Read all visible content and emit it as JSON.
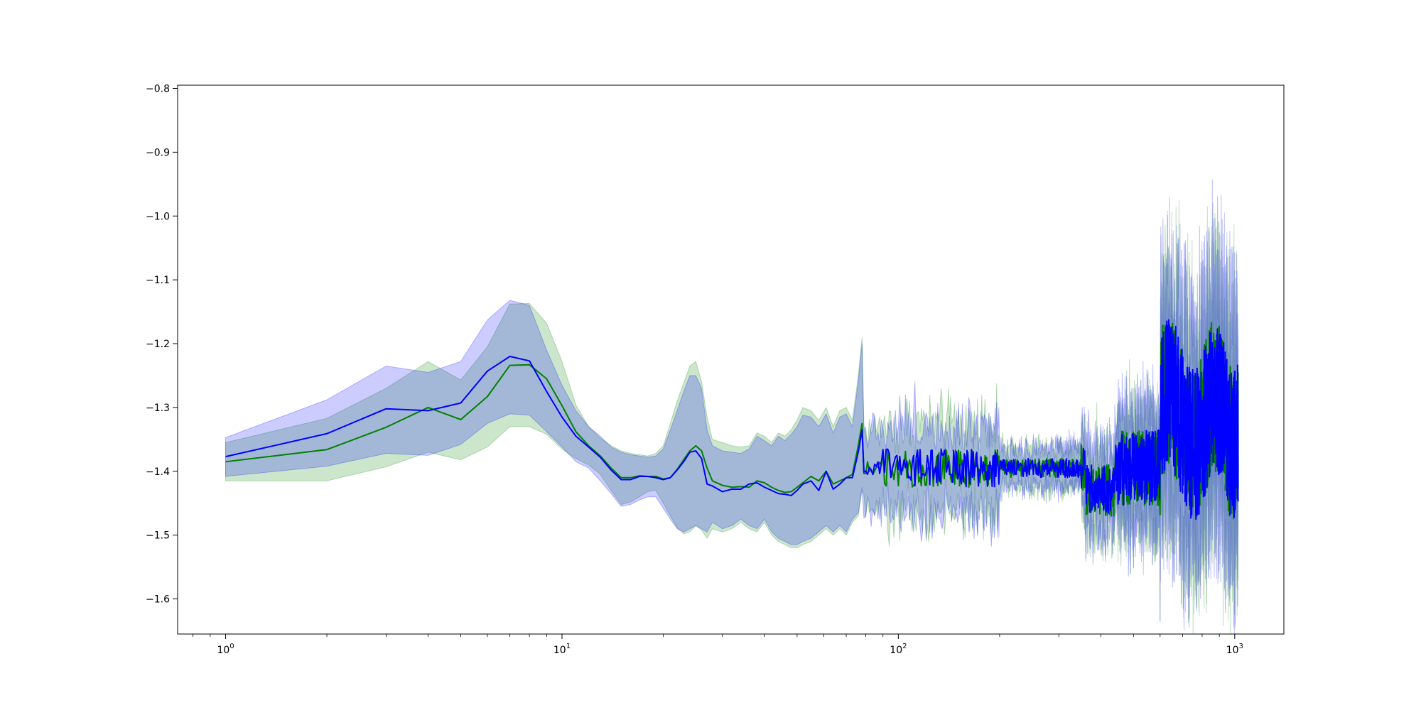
{
  "chart_data": {
    "type": "line",
    "title": "",
    "xlabel": "",
    "ylabel": "",
    "xscale": "log",
    "xlim": [
      0.72,
      1400
    ],
    "ylim": [
      -1.655,
      -0.795
    ],
    "grid": false,
    "legend": "none",
    "x_ticks": [
      {
        "value": 1,
        "base": "10",
        "exp": "0"
      },
      {
        "value": 10,
        "base": "10",
        "exp": "1"
      },
      {
        "value": 100,
        "base": "10",
        "exp": "2"
      },
      {
        "value": 1000,
        "base": "10",
        "exp": "3"
      }
    ],
    "y_ticks": [
      {
        "value": -0.8,
        "label": "−0.8"
      },
      {
        "value": -0.9,
        "label": "−0.9"
      },
      {
        "value": -1.0,
        "label": "−1.0"
      },
      {
        "value": -1.1,
        "label": "−1.1"
      },
      {
        "value": -1.2,
        "label": "−1.2"
      },
      {
        "value": -1.3,
        "label": "−1.3"
      },
      {
        "value": -1.4,
        "label": "−1.4"
      },
      {
        "value": -1.5,
        "label": "−1.5"
      },
      {
        "value": -1.6,
        "label": "−1.6"
      }
    ],
    "series": [
      {
        "color": "#008000",
        "band_color": "#008000",
        "band_opacity": 0.2,
        "x": [
          1,
          2,
          3,
          4,
          5,
          6,
          7,
          8,
          9,
          10,
          11,
          12,
          13,
          14,
          15,
          16,
          17,
          18,
          19,
          20,
          21,
          22,
          23,
          24,
          25,
          26,
          27,
          28,
          30,
          32,
          34,
          36,
          38,
          40,
          42,
          44,
          46,
          48,
          50,
          52,
          55,
          58,
          61,
          64,
          67,
          70,
          73,
          76,
          78
        ],
        "y": [
          -1.385,
          -1.366,
          -1.331,
          -1.3,
          -1.319,
          -1.283,
          -1.234,
          -1.233,
          -1.255,
          -1.297,
          -1.338,
          -1.36,
          -1.376,
          -1.395,
          -1.41,
          -1.41,
          -1.407,
          -1.408,
          -1.408,
          -1.412,
          -1.41,
          -1.397,
          -1.382,
          -1.368,
          -1.36,
          -1.368,
          -1.395,
          -1.415,
          -1.422,
          -1.425,
          -1.424,
          -1.425,
          -1.415,
          -1.418,
          -1.425,
          -1.43,
          -1.433,
          -1.432,
          -1.425,
          -1.418,
          -1.408,
          -1.415,
          -1.4,
          -1.42,
          -1.415,
          -1.41,
          -1.405,
          -1.36,
          -1.325
        ],
        "lower": [
          -1.415,
          -1.415,
          -1.393,
          -1.37,
          -1.382,
          -1.362,
          -1.33,
          -1.33,
          -1.342,
          -1.365,
          -1.38,
          -1.39,
          -1.405,
          -1.43,
          -1.452,
          -1.448,
          -1.44,
          -1.432,
          -1.43,
          -1.45,
          -1.47,
          -1.488,
          -1.498,
          -1.495,
          -1.485,
          -1.492,
          -1.505,
          -1.49,
          -1.495,
          -1.49,
          -1.48,
          -1.49,
          -1.495,
          -1.48,
          -1.5,
          -1.51,
          -1.515,
          -1.52,
          -1.52,
          -1.515,
          -1.51,
          -1.5,
          -1.49,
          -1.5,
          -1.49,
          -1.5,
          -1.48,
          -1.47,
          -1.43
        ],
        "upper": [
          -1.355,
          -1.317,
          -1.27,
          -1.228,
          -1.257,
          -1.205,
          -1.138,
          -1.137,
          -1.168,
          -1.228,
          -1.296,
          -1.33,
          -1.348,
          -1.36,
          -1.368,
          -1.372,
          -1.374,
          -1.376,
          -1.372,
          -1.36,
          -1.325,
          -1.29,
          -1.262,
          -1.235,
          -1.228,
          -1.26,
          -1.315,
          -1.35,
          -1.355,
          -1.36,
          -1.362,
          -1.36,
          -1.34,
          -1.345,
          -1.355,
          -1.34,
          -1.345,
          -1.335,
          -1.32,
          -1.3,
          -1.305,
          -1.32,
          -1.3,
          -1.33,
          -1.305,
          -1.3,
          -1.32,
          -1.25,
          -1.19
        ]
      },
      {
        "color": "#0000ff",
        "band_color": "#0000ff",
        "band_opacity": 0.2,
        "x": [
          1,
          2,
          3,
          4,
          5,
          6,
          7,
          8,
          9,
          10,
          11,
          12,
          13,
          14,
          15,
          16,
          17,
          18,
          19,
          20,
          21,
          22,
          23,
          24,
          25,
          26,
          27,
          28,
          30,
          32,
          34,
          36,
          38,
          40,
          42,
          44,
          46,
          48,
          50,
          52,
          55,
          58,
          61,
          64,
          67,
          70,
          73,
          76,
          78
        ],
        "y": [
          -1.377,
          -1.341,
          -1.302,
          -1.305,
          -1.293,
          -1.243,
          -1.22,
          -1.227,
          -1.275,
          -1.315,
          -1.345,
          -1.362,
          -1.378,
          -1.398,
          -1.413,
          -1.413,
          -1.408,
          -1.408,
          -1.41,
          -1.413,
          -1.41,
          -1.398,
          -1.385,
          -1.37,
          -1.368,
          -1.38,
          -1.42,
          -1.423,
          -1.432,
          -1.428,
          -1.428,
          -1.42,
          -1.418,
          -1.425,
          -1.43,
          -1.435,
          -1.436,
          -1.438,
          -1.43,
          -1.42,
          -1.415,
          -1.43,
          -1.4,
          -1.428,
          -1.42,
          -1.41,
          -1.41,
          -1.37,
          -1.335
        ],
        "lower": [
          -1.408,
          -1.392,
          -1.372,
          -1.375,
          -1.358,
          -1.325,
          -1.31,
          -1.312,
          -1.338,
          -1.362,
          -1.385,
          -1.395,
          -1.415,
          -1.435,
          -1.455,
          -1.452,
          -1.445,
          -1.44,
          -1.44,
          -1.458,
          -1.475,
          -1.49,
          -1.495,
          -1.49,
          -1.485,
          -1.49,
          -1.495,
          -1.48,
          -1.49,
          -1.485,
          -1.475,
          -1.485,
          -1.49,
          -1.475,
          -1.495,
          -1.505,
          -1.51,
          -1.515,
          -1.515,
          -1.51,
          -1.505,
          -1.495,
          -1.485,
          -1.495,
          -1.485,
          -1.495,
          -1.475,
          -1.465,
          -1.425
        ],
        "upper": [
          -1.347,
          -1.288,
          -1.235,
          -1.245,
          -1.228,
          -1.163,
          -1.132,
          -1.14,
          -1.21,
          -1.265,
          -1.305,
          -1.33,
          -1.345,
          -1.362,
          -1.37,
          -1.374,
          -1.376,
          -1.378,
          -1.376,
          -1.365,
          -1.335,
          -1.305,
          -1.275,
          -1.25,
          -1.25,
          -1.27,
          -1.335,
          -1.36,
          -1.368,
          -1.37,
          -1.372,
          -1.365,
          -1.345,
          -1.352,
          -1.36,
          -1.345,
          -1.352,
          -1.342,
          -1.33,
          -1.312,
          -1.315,
          -1.33,
          -1.31,
          -1.34,
          -1.315,
          -1.31,
          -1.33,
          -1.26,
          -1.2
        ]
      }
    ]
  }
}
